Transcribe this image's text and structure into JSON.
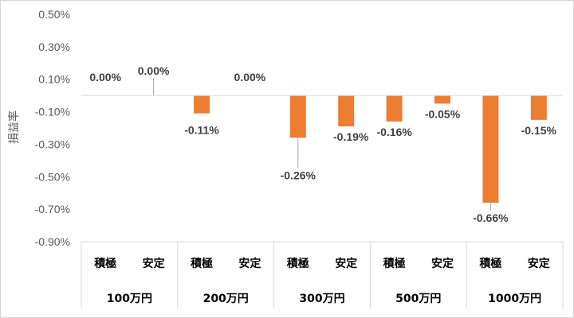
{
  "chart_data": {
    "type": "bar",
    "ylabel": "損益率",
    "ylim": [
      -0.9,
      0.5
    ],
    "ytick_labels": [
      "0.50%",
      "0.30%",
      "0.10%",
      "-0.10%",
      "-0.30%",
      "-0.50%",
      "-0.70%",
      "-0.90%"
    ],
    "yticks": [
      0.5,
      0.3,
      0.1,
      -0.1,
      -0.3,
      -0.5,
      -0.7,
      -0.9
    ],
    "groups": [
      "100万円",
      "200万円",
      "300万円",
      "500万円",
      "1000万円"
    ],
    "categories": [
      "積極",
      "安定",
      "積極",
      "安定",
      "積極",
      "安定",
      "積極",
      "安定",
      "積極",
      "安定"
    ],
    "values": [
      0.0,
      0.0,
      -0.11,
      0.0,
      -0.26,
      -0.19,
      -0.16,
      -0.05,
      -0.66,
      -0.15
    ],
    "data_labels": [
      "0.00%",
      "0.00%",
      "-0.11%",
      "0.00%",
      "-0.26%",
      "-0.19%",
      "-0.16%",
      "-0.05%",
      "-0.66%",
      "-0.15%"
    ],
    "grid": false,
    "bar_color": "#ed7d31"
  }
}
